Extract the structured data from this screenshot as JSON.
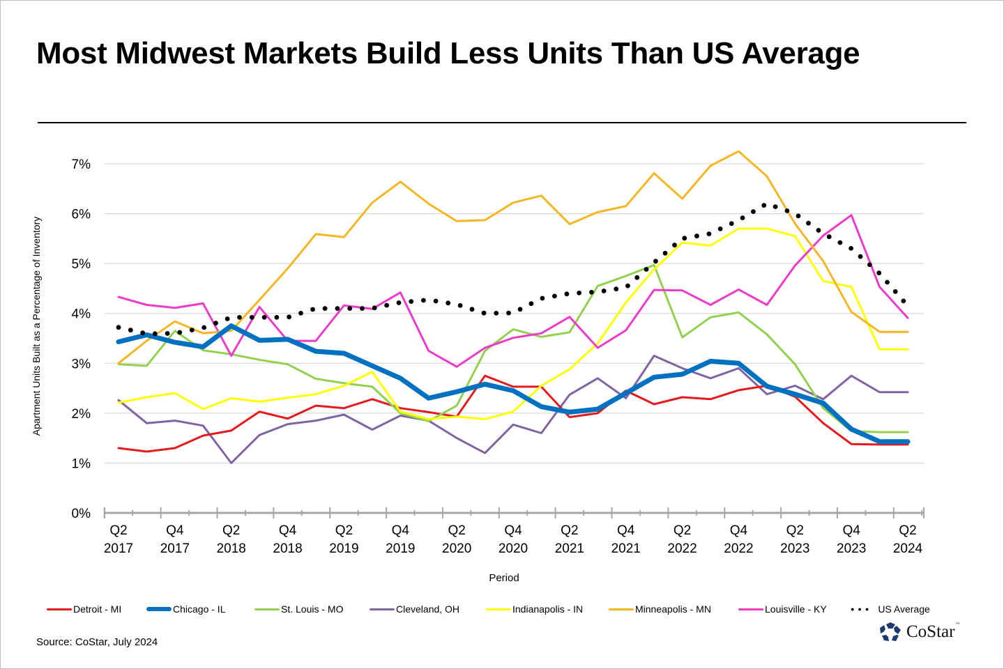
{
  "title": "Most Midwest Markets Build Less Units Than US Average",
  "source": "Source: CoStar, July 2024",
  "logo": {
    "text": "CoStar",
    "tm": "™",
    "icon": "costar-star-icon",
    "color": "#1e3a6e"
  },
  "chart_data": {
    "type": "line",
    "title": "Most Midwest Markets Build Less Units Than US Average",
    "xlabel": "Period",
    "ylabel": "Apartment Units Built as a Percentage of Inventory",
    "ylim": [
      0,
      7
    ],
    "yticks": [
      "0%",
      "1%",
      "2%",
      "3%",
      "4%",
      "5%",
      "6%",
      "7%"
    ],
    "grid": true,
    "legend_position": "bottom",
    "x": [
      "Q2 2017",
      "Q3 2017",
      "Q4 2017",
      "Q1 2018",
      "Q2 2018",
      "Q3 2018",
      "Q4 2018",
      "Q1 2019",
      "Q2 2019",
      "Q3 2019",
      "Q4 2019",
      "Q1 2020",
      "Q2 2020",
      "Q3 2020",
      "Q4 2020",
      "Q1 2021",
      "Q2 2021",
      "Q3 2021",
      "Q4 2021",
      "Q1 2022",
      "Q2 2022",
      "Q3 2022",
      "Q4 2022",
      "Q1 2023",
      "Q2 2023",
      "Q3 2023",
      "Q4 2023",
      "Q1 2024",
      "Q2 2024"
    ],
    "xtick_labels": [
      {
        "q": "Q2",
        "y": "2017"
      },
      {
        "q": "Q4",
        "y": "2017"
      },
      {
        "q": "Q2",
        "y": "2018"
      },
      {
        "q": "Q4",
        "y": "2018"
      },
      {
        "q": "Q2",
        "y": "2019"
      },
      {
        "q": "Q4",
        "y": "2019"
      },
      {
        "q": "Q2",
        "y": "2020"
      },
      {
        "q": "Q4",
        "y": "2020"
      },
      {
        "q": "Q2",
        "y": "2021"
      },
      {
        "q": "Q4",
        "y": "2021"
      },
      {
        "q": "Q2",
        "y": "2022"
      },
      {
        "q": "Q4",
        "y": "2022"
      },
      {
        "q": "Q2",
        "y": "2023"
      },
      {
        "q": "Q4",
        "y": "2023"
      },
      {
        "q": "Q2",
        "y": "2024"
      }
    ],
    "series": [
      {
        "name": "Detroit - MI",
        "color": "#e41a1c",
        "style": "solid",
        "weight": "normal",
        "values": [
          1.3,
          1.23,
          1.3,
          1.55,
          1.65,
          2.03,
          1.89,
          2.15,
          2.1,
          2.28,
          2.1,
          2.02,
          1.93,
          2.75,
          2.53,
          2.53,
          1.92,
          2.0,
          2.45,
          2.18,
          2.32,
          2.28,
          2.46,
          2.55,
          2.33,
          1.8,
          1.38,
          1.37,
          1.37
        ]
      },
      {
        "name": "Chicago - IL",
        "color": "#0070c0",
        "style": "solid",
        "weight": "thick",
        "values": [
          3.43,
          3.57,
          3.42,
          3.33,
          3.75,
          3.46,
          3.48,
          3.24,
          3.2,
          2.95,
          2.7,
          2.3,
          2.43,
          2.58,
          2.45,
          2.13,
          2.02,
          2.08,
          2.4,
          2.72,
          2.78,
          3.04,
          3.0,
          2.54,
          2.38,
          2.2,
          1.68,
          1.43,
          1.43
        ]
      },
      {
        "name": "St. Louis - MO",
        "color": "#92d050",
        "style": "solid",
        "weight": "normal",
        "values": [
          2.98,
          2.95,
          3.65,
          3.26,
          3.18,
          3.07,
          2.98,
          2.69,
          2.6,
          2.53,
          2.0,
          1.84,
          2.15,
          3.25,
          3.68,
          3.53,
          3.62,
          4.55,
          4.75,
          4.97,
          3.52,
          3.92,
          4.02,
          3.58,
          2.98,
          2.1,
          1.64,
          1.62,
          1.62
        ]
      },
      {
        "name": "Cleveland, OH",
        "color": "#8064a2",
        "style": "solid",
        "weight": "normal",
        "values": [
          2.26,
          1.8,
          1.85,
          1.75,
          1.0,
          1.56,
          1.78,
          1.85,
          1.97,
          1.67,
          1.95,
          1.85,
          1.5,
          1.2,
          1.77,
          1.6,
          2.37,
          2.7,
          2.3,
          3.15,
          2.9,
          2.7,
          2.9,
          2.38,
          2.55,
          2.28,
          2.75,
          2.42,
          2.42
        ]
      },
      {
        "name": "Indianapolis - IN",
        "color": "#ffff00",
        "style": "solid",
        "weight": "normal",
        "values": [
          2.21,
          2.32,
          2.4,
          2.08,
          2.3,
          2.23,
          2.31,
          2.38,
          2.55,
          2.83,
          2.03,
          1.88,
          1.93,
          1.88,
          2.03,
          2.55,
          2.88,
          3.4,
          4.22,
          4.88,
          5.42,
          5.36,
          5.7,
          5.7,
          5.55,
          4.65,
          4.53,
          3.28,
          3.28
        ]
      },
      {
        "name": "Minneapolis - MN",
        "color": "#f4b622",
        "style": "solid",
        "weight": "normal",
        "values": [
          3.0,
          3.45,
          3.84,
          3.6,
          3.65,
          4.27,
          4.9,
          5.59,
          5.53,
          6.22,
          6.64,
          6.2,
          5.85,
          5.87,
          6.22,
          6.36,
          5.79,
          6.03,
          6.15,
          6.81,
          6.3,
          6.96,
          7.25,
          6.75,
          5.8,
          5.05,
          4.03,
          3.63,
          3.63
        ]
      },
      {
        "name": "Louisville - KY",
        "color": "#ec3bc8",
        "style": "solid",
        "weight": "normal",
        "values": [
          4.33,
          4.17,
          4.11,
          4.2,
          3.15,
          4.13,
          3.45,
          3.45,
          4.16,
          4.09,
          4.42,
          3.25,
          2.93,
          3.31,
          3.51,
          3.6,
          3.93,
          3.31,
          3.66,
          4.47,
          4.46,
          4.17,
          4.48,
          4.17,
          4.96,
          5.56,
          5.97,
          4.53,
          3.91
        ]
      },
      {
        "name": "US Average",
        "color": "#000000",
        "style": "dotted",
        "weight": "normal",
        "values": [
          3.72,
          3.59,
          3.6,
          3.71,
          3.92,
          3.92,
          3.92,
          4.1,
          4.1,
          4.1,
          4.22,
          4.27,
          4.18,
          4.0,
          4.01,
          4.3,
          4.4,
          4.43,
          4.52,
          5.02,
          5.5,
          5.6,
          5.87,
          6.2,
          6.0,
          5.6,
          5.3,
          4.8,
          4.15
        ]
      }
    ]
  }
}
